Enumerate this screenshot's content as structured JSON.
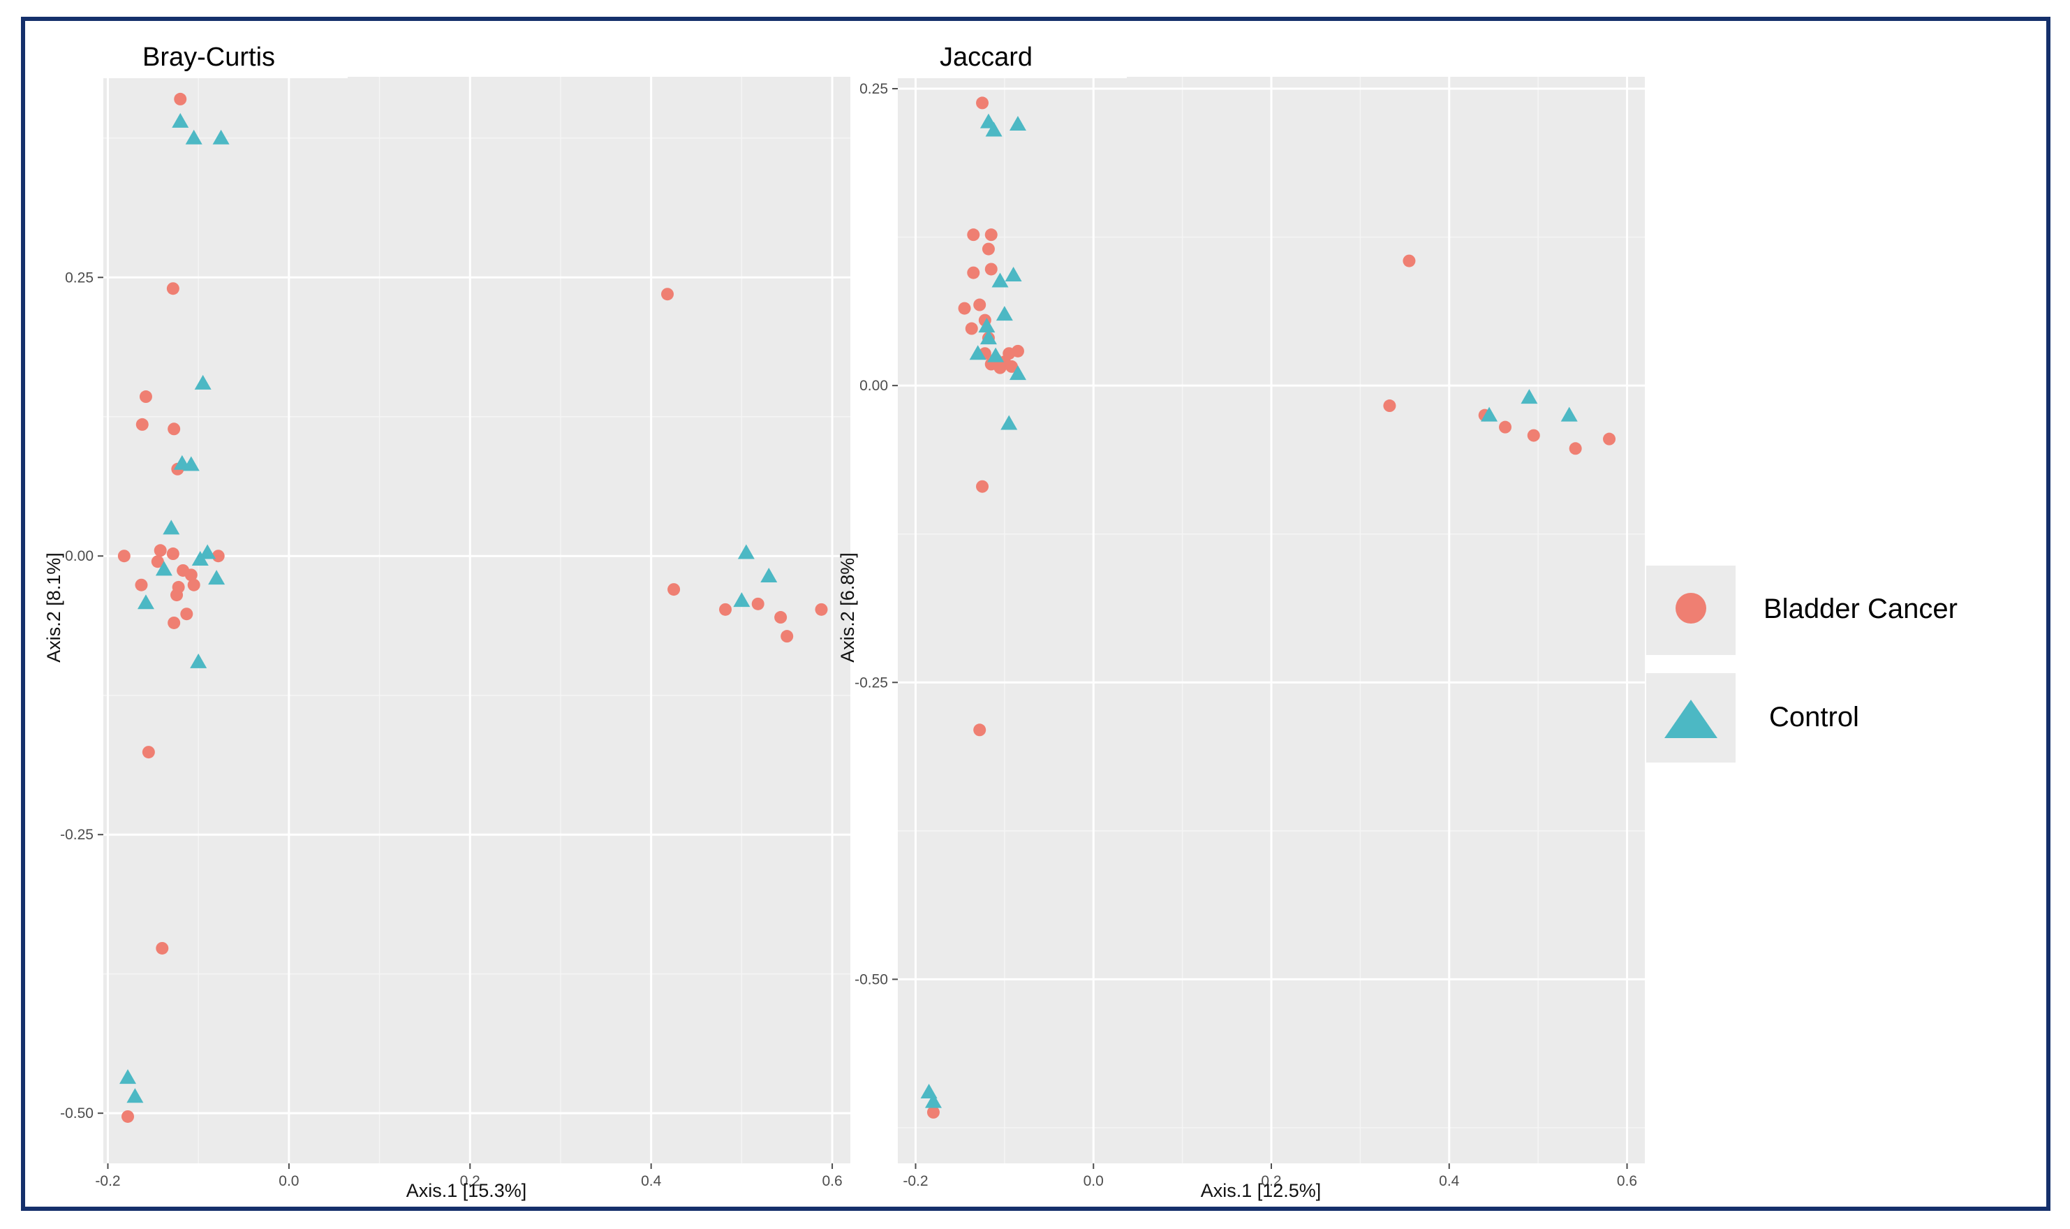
{
  "legend": {
    "items": [
      {
        "label": "Bladder Cancer",
        "shape": "circle",
        "color": "#ef7f72"
      },
      {
        "label": "Control",
        "shape": "triangle",
        "color": "#4cb8c4"
      }
    ]
  },
  "chart_data": [
    {
      "type": "scatter",
      "title": "Bray-Curtis",
      "xlabel": "Axis.1   [15.3%]",
      "ylabel": "Axis.2   [8.1%]",
      "xlim": [
        -0.205,
        0.62
      ],
      "ylim": [
        -0.545,
        0.43
      ],
      "xticks": [
        -0.2,
        0.0,
        0.2,
        0.4,
        0.6
      ],
      "xtick_labels": [
        "-0.2",
        "0.0",
        "0.2",
        "0.4",
        "0.6"
      ],
      "yticks": [
        0.25,
        0.0,
        -0.25,
        -0.5
      ],
      "ytick_labels": [
        "0.25",
        "0.00",
        "-0.25",
        "-0.50"
      ],
      "series": [
        {
          "name": "Bladder Cancer",
          "points": [
            [
              -0.12,
              0.41
            ],
            [
              -0.128,
              0.24
            ],
            [
              -0.158,
              0.143
            ],
            [
              -0.162,
              0.118
            ],
            [
              -0.127,
              0.114
            ],
            [
              -0.123,
              0.078
            ],
            [
              -0.182,
              0.0
            ],
            [
              -0.142,
              0.005
            ],
            [
              -0.128,
              0.002
            ],
            [
              -0.145,
              -0.005
            ],
            [
              -0.117,
              -0.013
            ],
            [
              -0.108,
              -0.017
            ],
            [
              -0.122,
              -0.028
            ],
            [
              -0.105,
              -0.026
            ],
            [
              -0.163,
              -0.026
            ],
            [
              -0.124,
              -0.035
            ],
            [
              -0.113,
              -0.052
            ],
            [
              -0.127,
              -0.06
            ],
            [
              -0.078,
              0.0
            ],
            [
              -0.155,
              -0.176
            ],
            [
              -0.14,
              -0.352
            ],
            [
              -0.178,
              -0.503
            ],
            [
              0.418,
              0.235
            ],
            [
              0.425,
              -0.03
            ],
            [
              0.482,
              -0.048
            ],
            [
              0.518,
              -0.043
            ],
            [
              0.543,
              -0.055
            ],
            [
              0.55,
              -0.072
            ],
            [
              0.588,
              -0.048
            ]
          ]
        },
        {
          "name": "Control",
          "points": [
            [
              -0.12,
              0.39
            ],
            [
              -0.105,
              0.375
            ],
            [
              -0.075,
              0.375
            ],
            [
              -0.095,
              0.155
            ],
            [
              -0.118,
              0.083
            ],
            [
              -0.108,
              0.082
            ],
            [
              -0.13,
              0.025
            ],
            [
              -0.138,
              -0.012
            ],
            [
              -0.098,
              -0.003
            ],
            [
              -0.09,
              0.003
            ],
            [
              -0.08,
              -0.02
            ],
            [
              -0.158,
              -0.042
            ],
            [
              -0.1,
              -0.095
            ],
            [
              -0.178,
              -0.468
            ],
            [
              -0.17,
              -0.485
            ],
            [
              0.505,
              0.003
            ],
            [
              0.53,
              -0.018
            ],
            [
              0.5,
              -0.04
            ]
          ]
        }
      ]
    },
    {
      "type": "scatter",
      "title": "Jaccard",
      "xlabel": "Axis.1   [12.5%]",
      "ylabel": "Axis.2   [6.8%]",
      "xlim": [
        -0.22,
        0.62
      ],
      "ylim": [
        -0.655,
        0.26
      ],
      "xticks": [
        -0.2,
        0.0,
        0.2,
        0.4,
        0.6
      ],
      "xtick_labels": [
        "-0.2",
        "0.0",
        "0.2",
        "0.4",
        "0.6"
      ],
      "yticks": [
        0.25,
        0.0,
        -0.25,
        -0.5
      ],
      "ytick_labels": [
        "0.25",
        "0.00",
        "-0.25",
        "-0.50"
      ],
      "series": [
        {
          "name": "Bladder Cancer",
          "points": [
            [
              -0.125,
              0.238
            ],
            [
              -0.135,
              0.127
            ],
            [
              -0.115,
              0.127
            ],
            [
              -0.118,
              0.115
            ],
            [
              -0.135,
              0.095
            ],
            [
              -0.115,
              0.098
            ],
            [
              -0.145,
              0.065
            ],
            [
              -0.128,
              0.068
            ],
            [
              -0.122,
              0.055
            ],
            [
              -0.137,
              0.048
            ],
            [
              -0.118,
              0.04
            ],
            [
              -0.122,
              0.027
            ],
            [
              -0.11,
              0.022
            ],
            [
              -0.1,
              0.02
            ],
            [
              -0.095,
              0.027
            ],
            [
              -0.085,
              0.029
            ],
            [
              -0.115,
              0.018
            ],
            [
              -0.105,
              0.015
            ],
            [
              -0.092,
              0.016
            ],
            [
              -0.125,
              -0.085
            ],
            [
              -0.128,
              -0.29
            ],
            [
              -0.18,
              -0.612
            ],
            [
              0.355,
              0.105
            ],
            [
              0.333,
              -0.017
            ],
            [
              0.44,
              -0.025
            ],
            [
              0.463,
              -0.035
            ],
            [
              0.495,
              -0.042
            ],
            [
              0.542,
              -0.053
            ],
            [
              0.58,
              -0.045
            ]
          ]
        },
        {
          "name": "Control",
          "points": [
            [
              -0.118,
              0.222
            ],
            [
              -0.112,
              0.215
            ],
            [
              -0.085,
              0.22
            ],
            [
              -0.09,
              0.093
            ],
            [
              -0.105,
              0.088
            ],
            [
              -0.1,
              0.06
            ],
            [
              -0.12,
              0.05
            ],
            [
              -0.118,
              0.04
            ],
            [
              -0.13,
              0.027
            ],
            [
              -0.11,
              0.025
            ],
            [
              -0.085,
              0.01
            ],
            [
              -0.095,
              -0.032
            ],
            [
              -0.185,
              -0.595
            ],
            [
              -0.18,
              -0.603
            ],
            [
              0.445,
              -0.025
            ],
            [
              0.49,
              -0.01
            ],
            [
              0.535,
              -0.025
            ]
          ]
        }
      ]
    }
  ]
}
